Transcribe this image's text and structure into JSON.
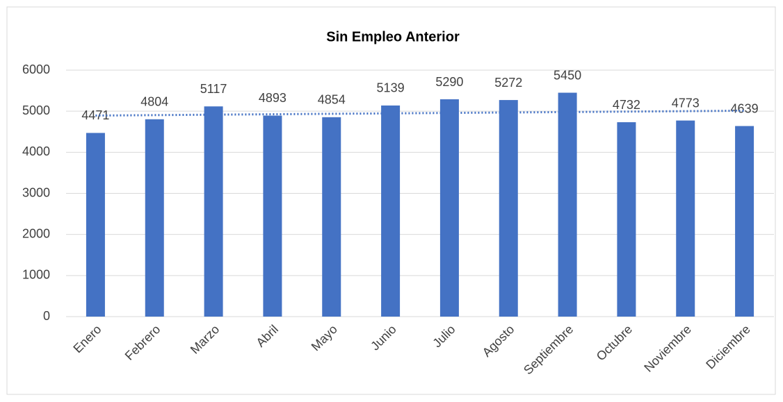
{
  "chart_data": {
    "type": "bar",
    "title": "Sin Empleo Anterior",
    "categories": [
      "Enero",
      "Febrero",
      "Marzo",
      "Abril",
      "Mayo",
      "Junio",
      "Julio",
      "Agosto",
      "Septiembre",
      "Octubre",
      "Noviembre",
      "Diciembre"
    ],
    "values": [
      4471,
      4804,
      5117,
      4893,
      4854,
      5139,
      5290,
      5272,
      5450,
      4732,
      4773,
      4639
    ],
    "color": "#4472c4",
    "ylim": [
      0,
      6000
    ],
    "yticks": [
      0,
      1000,
      2000,
      3000,
      4000,
      5000,
      6000
    ],
    "grid": true,
    "trendline": "linear"
  }
}
